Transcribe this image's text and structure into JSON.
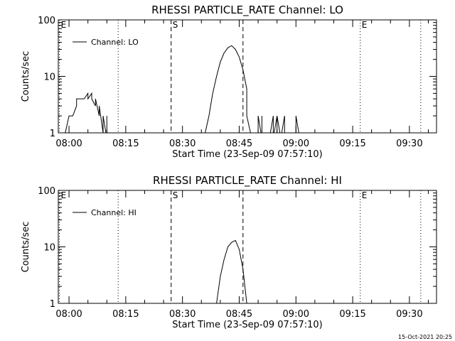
{
  "footer": {
    "timestamp": "15-Oct-2021 20:25"
  },
  "chart_data": [
    {
      "type": "line",
      "title": "RHESSI PARTICLE_RATE Channel: LO",
      "xlabel": "Start Time (23-Sep-09 07:57:10)",
      "ylabel": "Counts/sec",
      "yscale": "log",
      "ylim": [
        1,
        100
      ],
      "xlim_minutes": [
        0,
        100
      ],
      "x_tick_labels": [
        "08:00",
        "08:15",
        "08:30",
        "08:45",
        "09:00",
        "09:15",
        "09:30"
      ],
      "y_tick_labels": [
        "1",
        "10",
        "100"
      ],
      "legend": {
        "position": "top-left",
        "entries": [
          "Channel: LO"
        ]
      },
      "markers": [
        {
          "label": "E",
          "time": "07:57",
          "style": "dotted"
        },
        {
          "label": "",
          "time": "08:13",
          "style": "dotted"
        },
        {
          "label": "S",
          "time": "08:27",
          "style": "dashed"
        },
        {
          "label": "",
          "time": "08:46",
          "style": "dashed"
        },
        {
          "label": "E",
          "time": "09:17",
          "style": "dotted"
        },
        {
          "label": "",
          "time": "09:33",
          "style": "dotted"
        }
      ],
      "series": [
        {
          "name": "Channel: LO",
          "points": [
            [
              "07:58",
              0.8
            ],
            [
              "07:59",
              1
            ],
            [
              "08:00",
              2
            ],
            [
              "08:01",
              2
            ],
            [
              "08:02",
              3
            ],
            [
              "08:02",
              4
            ],
            [
              "08:03",
              4
            ],
            [
              "08:04",
              4
            ],
            [
              "08:05",
              5
            ],
            [
              "08:05",
              4
            ],
            [
              "08:06",
              5
            ],
            [
              "08:06",
              4
            ],
            [
              "08:07",
              3
            ],
            [
              "08:07",
              4
            ],
            [
              "08:08",
              2
            ],
            [
              "08:08",
              3
            ],
            [
              "08:09",
              1
            ],
            [
              "08:09",
              2
            ],
            [
              "08:10",
              0.8
            ],
            [
              "08:10",
              2
            ],
            [
              "08:10",
              0.8
            ],
            [
              "08:35",
              0.8
            ],
            [
              "08:36",
              1
            ],
            [
              "08:37",
              2
            ],
            [
              "08:38",
              5
            ],
            [
              "08:39",
              10
            ],
            [
              "08:40",
              18
            ],
            [
              "08:41",
              26
            ],
            [
              "08:42",
              32
            ],
            [
              "08:43",
              35
            ],
            [
              "08:44",
              30
            ],
            [
              "08:45",
              22
            ],
            [
              "08:46",
              13
            ],
            [
              "08:47",
              6
            ],
            [
              "08:47",
              2
            ],
            [
              "08:48",
              1
            ],
            [
              "08:48",
              0.8
            ],
            [
              "08:50",
              0.8
            ],
            [
              "08:50",
              2
            ],
            [
              "08:51",
              0.8
            ],
            [
              "08:51",
              2
            ],
            [
              "08:51",
              0.8
            ],
            [
              "08:53",
              0.8
            ],
            [
              "08:54",
              2
            ],
            [
              "08:54",
              0.8
            ],
            [
              "08:55",
              2
            ],
            [
              "08:55",
              0.8
            ],
            [
              "08:55",
              2
            ],
            [
              "08:56",
              0.8
            ],
            [
              "08:57",
              2
            ],
            [
              "08:57",
              0.8
            ],
            [
              "09:00",
              0.8
            ],
            [
              "09:00",
              2
            ],
            [
              "09:01",
              0.8
            ]
          ]
        }
      ]
    },
    {
      "type": "line",
      "title": "RHESSI PARTICLE_RATE Channel: HI",
      "xlabel": "Start Time (23-Sep-09 07:57:10)",
      "ylabel": "Counts/sec",
      "yscale": "log",
      "ylim": [
        1,
        100
      ],
      "xlim_minutes": [
        0,
        100
      ],
      "x_tick_labels": [
        "08:00",
        "08:15",
        "08:30",
        "08:45",
        "09:00",
        "09:15",
        "09:30"
      ],
      "y_tick_labels": [
        "1",
        "10",
        "100"
      ],
      "legend": {
        "position": "top-left",
        "entries": [
          "Channel: HI"
        ]
      },
      "markers": [
        {
          "label": "E",
          "time": "07:57",
          "style": "dotted"
        },
        {
          "label": "",
          "time": "08:13",
          "style": "dotted"
        },
        {
          "label": "S",
          "time": "08:27",
          "style": "dashed"
        },
        {
          "label": "",
          "time": "08:46",
          "style": "dashed"
        },
        {
          "label": "E",
          "time": "09:17",
          "style": "dotted"
        },
        {
          "label": "",
          "time": "09:33",
          "style": "dotted"
        }
      ],
      "series": [
        {
          "name": "Channel: HI",
          "points": [
            [
              "08:38",
              0.8
            ],
            [
              "08:39",
              1
            ],
            [
              "08:40",
              3
            ],
            [
              "08:41",
              6
            ],
            [
              "08:42",
              10
            ],
            [
              "08:43",
              12
            ],
            [
              "08:44",
              13
            ],
            [
              "08:45",
              9
            ],
            [
              "08:46",
              4
            ],
            [
              "08:47",
              1
            ],
            [
              "08:47",
              0.8
            ]
          ]
        }
      ]
    }
  ]
}
